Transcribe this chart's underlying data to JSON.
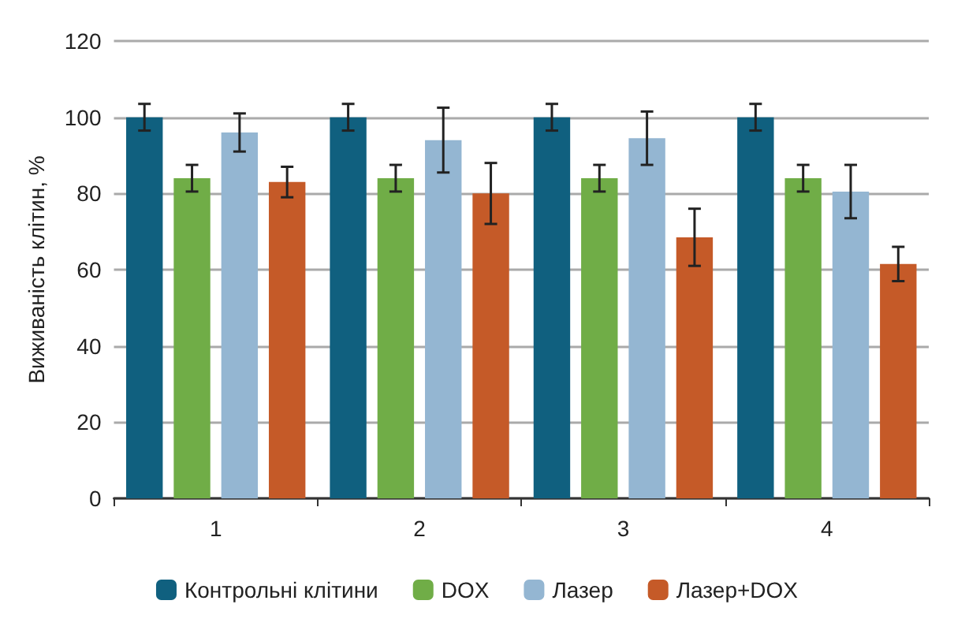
{
  "chart_data": {
    "type": "bar",
    "ylabel": "Виживаність клітин, %",
    "categories": [
      "1",
      "2",
      "3",
      "4"
    ],
    "series": [
      {
        "name": "Контрольні клітини",
        "color": "#10607f",
        "values": [
          100,
          100,
          100,
          100
        ],
        "errors": [
          3.5,
          3.5,
          3.5,
          3.5
        ]
      },
      {
        "name": "DOX",
        "color": "#70ad47",
        "values": [
          84,
          84,
          84,
          84
        ],
        "errors": [
          3.5,
          3.5,
          3.5,
          3.5
        ]
      },
      {
        "name": "Лазер",
        "color": "#94b6d2",
        "values": [
          96,
          94,
          94.5,
          80.5
        ],
        "errors": [
          5,
          8.5,
          7,
          7
        ]
      },
      {
        "name": "Лазер+DOX",
        "color": "#c55a28",
        "values": [
          83,
          80,
          68.5,
          61.5
        ],
        "errors": [
          4,
          8,
          7.5,
          4.5
        ]
      }
    ],
    "ylim": [
      0,
      120
    ],
    "yticks": [
      0,
      20,
      40,
      60,
      80,
      100,
      120
    ],
    "grid": "y",
    "legend": "bottom"
  }
}
